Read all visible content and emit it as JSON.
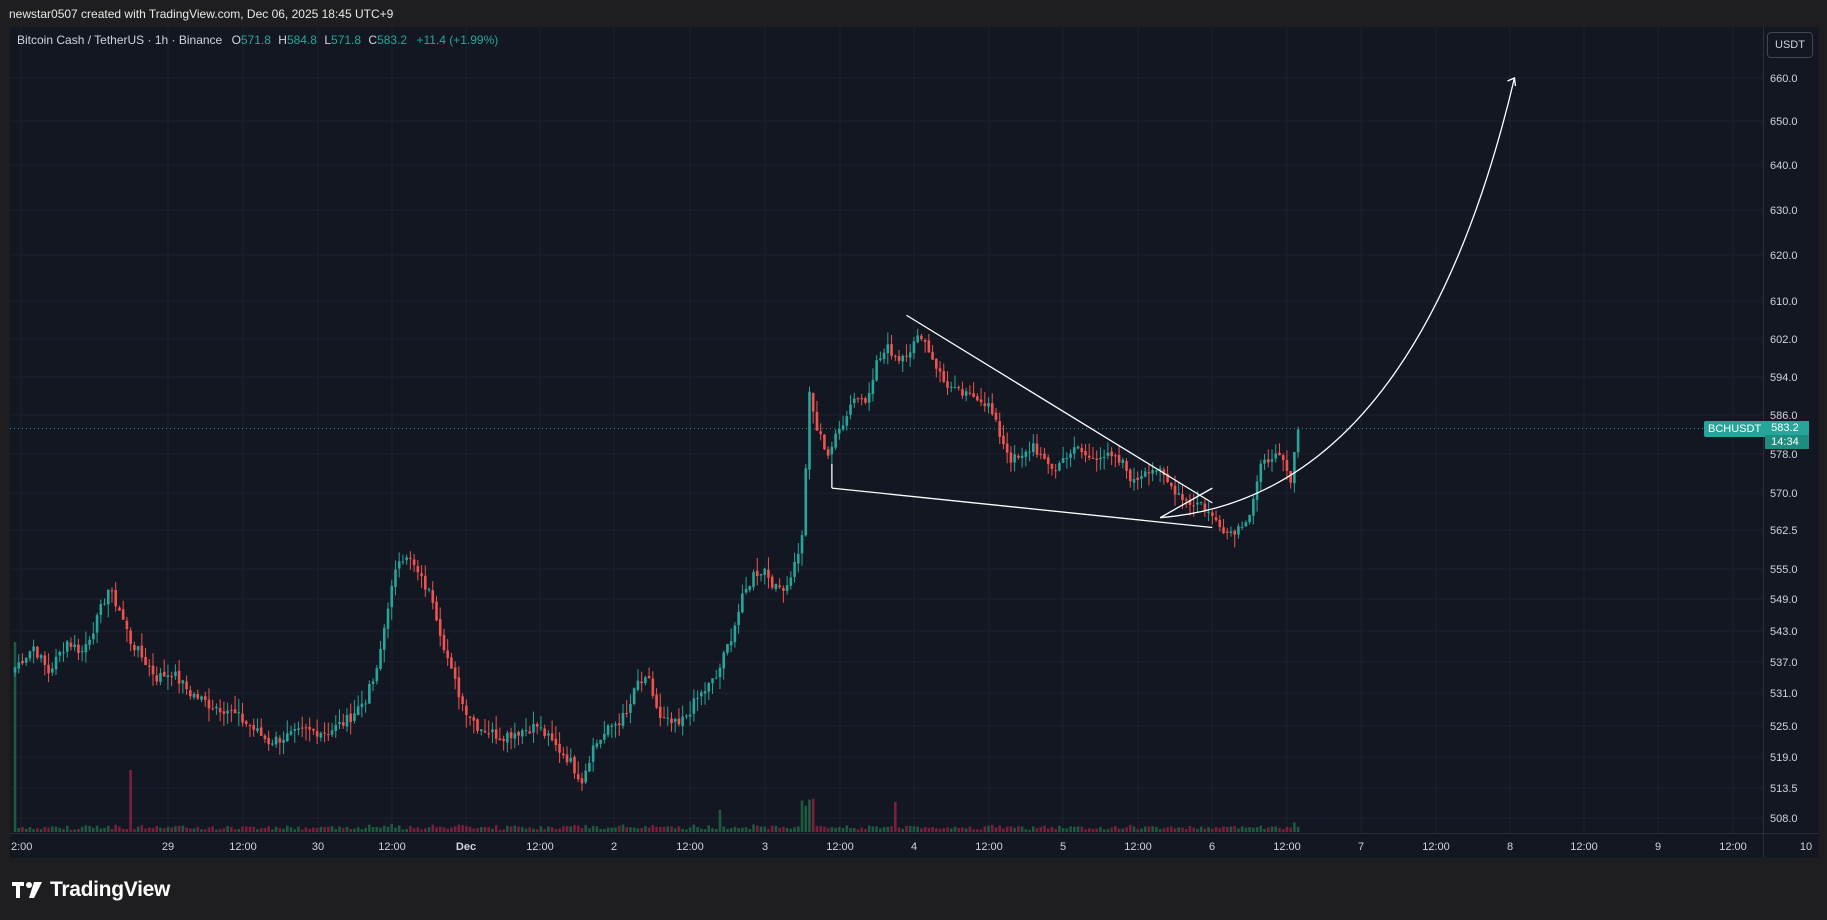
{
  "header": {
    "created_by": "newstar0507 created with TradingView.com, Dec 06, 2025 18:45 UTC+9"
  },
  "legend": {
    "symbol_text": "Bitcoin Cash / TetherUS · 1h · Binance",
    "o_label": "O",
    "o_value": "571.8",
    "h_label": "H",
    "h_value": "584.8",
    "l_label": "L",
    "l_value": "571.8",
    "c_label": "C",
    "c_value": "583.2",
    "change": "+11.4 (+1.99%)"
  },
  "price_scale": {
    "unit": "USDT",
    "current_symbol": "BCHUSDT",
    "current_price": "583.2",
    "countdown": "14:34"
  },
  "footer": {
    "brand": "TradingView"
  },
  "colors": {
    "background": "#131722",
    "bull": "#26a69a",
    "bear": "#ef5350",
    "bull_volume": "#1e5a3f",
    "bear_volume": "#7a1f3c",
    "grid": "#1e222d",
    "text": "#d1d4dc",
    "drawing": "#ffffff"
  },
  "chart_data": {
    "type": "candlestick",
    "symbol": "BCHUSDT",
    "timeframe": "1h",
    "exchange": "Binance",
    "ylim": [
      505,
      665
    ],
    "y_ticks": [
      "660.0",
      "650.0",
      "640.0",
      "630.0",
      "620.0",
      "610.0",
      "602.0",
      "594.0",
      "586.0",
      "578.0",
      "570.0",
      "562.5",
      "555.0",
      "549.0",
      "543.0",
      "537.0",
      "531.0",
      "525.0",
      "519.0",
      "513.5",
      "508.0"
    ],
    "x_ticks": [
      "2:00",
      "29",
      "12:00",
      "30",
      "12:00",
      "Dec",
      "12:00",
      "2",
      "12:00",
      "3",
      "12:00",
      "4",
      "12:00",
      "5",
      "12:00",
      "6",
      "12:00",
      "7",
      "12:00",
      "8",
      "12:00",
      "9",
      "12:00",
      "10"
    ],
    "last_price": 583.2,
    "waypoints": [
      [
        0,
        536
      ],
      [
        5,
        540
      ],
      [
        9,
        535
      ],
      [
        14,
        541
      ],
      [
        18,
        539
      ],
      [
        22,
        545
      ],
      [
        25,
        551
      ],
      [
        28,
        547
      ],
      [
        31,
        541
      ],
      [
        35,
        537
      ],
      [
        38,
        534
      ],
      [
        42,
        535
      ],
      [
        47,
        531
      ],
      [
        52,
        529
      ],
      [
        57,
        528
      ],
      [
        63,
        525
      ],
      [
        68,
        522
      ],
      [
        73,
        523
      ],
      [
        78,
        524
      ],
      [
        84,
        524
      ],
      [
        89,
        526
      ],
      [
        94,
        530
      ],
      [
        97,
        535
      ],
      [
        100,
        548
      ],
      [
        103,
        557
      ],
      [
        105,
        558
      ],
      [
        108,
        554
      ],
      [
        112,
        549
      ],
      [
        114,
        543
      ],
      [
        117,
        535
      ],
      [
        120,
        529
      ],
      [
        124,
        525
      ],
      [
        130,
        523
      ],
      [
        135,
        524
      ],
      [
        140,
        525
      ],
      [
        145,
        521
      ],
      [
        148,
        519
      ],
      [
        152,
        515
      ],
      [
        155,
        521
      ],
      [
        160,
        525
      ],
      [
        164,
        527
      ],
      [
        167,
        533
      ],
      [
        170,
        533
      ],
      [
        173,
        526
      ],
      [
        178,
        525
      ],
      [
        183,
        530
      ],
      [
        188,
        534
      ],
      [
        192,
        542
      ],
      [
        195,
        549
      ],
      [
        198,
        554
      ],
      [
        201,
        555
      ],
      [
        204,
        551
      ],
      [
        207,
        552
      ],
      [
        209,
        556
      ],
      [
        211,
        561
      ],
      [
        213,
        590
      ],
      [
        215,
        583
      ],
      [
        218,
        578
      ],
      [
        221,
        583
      ],
      [
        225,
        590
      ],
      [
        228,
        589
      ],
      [
        231,
        597
      ],
      [
        234,
        600
      ],
      [
        237,
        598
      ],
      [
        240,
        600
      ],
      [
        243,
        603
      ],
      [
        246,
        598
      ],
      [
        249,
        593
      ],
      [
        252,
        591
      ],
      [
        255,
        590
      ],
      [
        258,
        590
      ],
      [
        261,
        588
      ],
      [
        264,
        582
      ],
      [
        267,
        577
      ],
      [
        270,
        577
      ],
      [
        273,
        580
      ],
      [
        276,
        576
      ],
      [
        279,
        575
      ],
      [
        282,
        578
      ],
      [
        285,
        579
      ],
      [
        288,
        577
      ],
      [
        291,
        578
      ],
      [
        294,
        577
      ],
      [
        297,
        576
      ],
      [
        300,
        572
      ],
      [
        303,
        575
      ],
      [
        306,
        575
      ],
      [
        309,
        572
      ],
      [
        312,
        570
      ],
      [
        315,
        568
      ],
      [
        318,
        568
      ],
      [
        321,
        565
      ],
      [
        323,
        564
      ],
      [
        325,
        562
      ],
      [
        328,
        563
      ],
      [
        331,
        566
      ],
      [
        334,
        575
      ],
      [
        337,
        578
      ],
      [
        340,
        576
      ],
      [
        342,
        572
      ],
      [
        344,
        583
      ]
    ],
    "annotations": [
      {
        "type": "wedge_upper_line",
        "from": [
          239,
          607
        ],
        "to": [
          321,
          568
        ]
      },
      {
        "type": "wedge_lower_line",
        "from": [
          219,
          571
        ],
        "to": [
          321,
          563
        ]
      },
      {
        "type": "breakout_line",
        "from": [
          307,
          565
        ],
        "to": [
          321,
          571
        ]
      },
      {
        "type": "projection_curve",
        "from": [
          307,
          565
        ],
        "to": [
          402,
          660
        ]
      }
    ]
  }
}
